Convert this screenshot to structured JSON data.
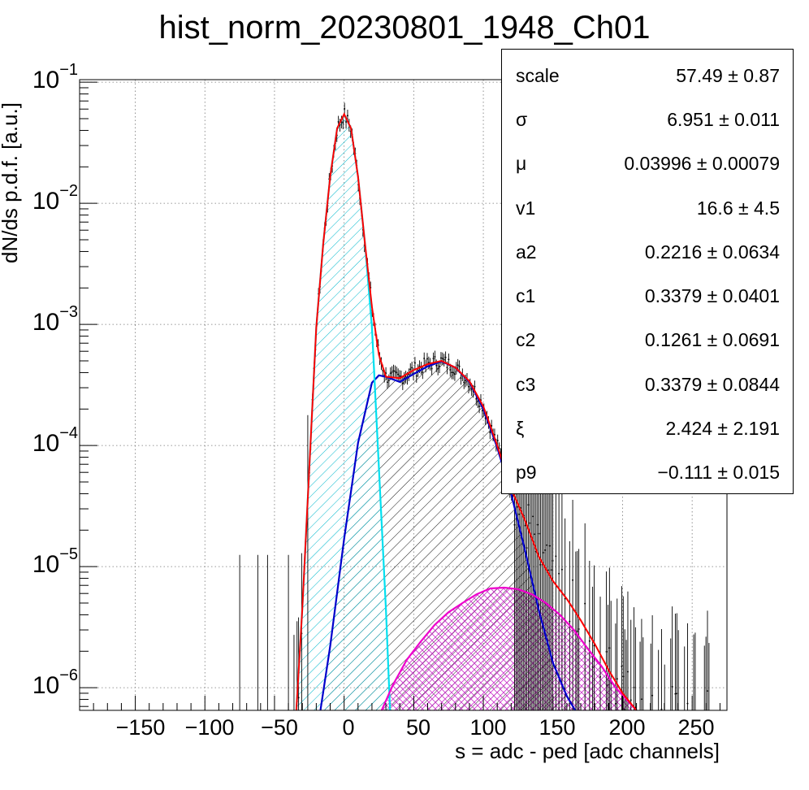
{
  "title": "hist_norm_20230801_1948_Ch01",
  "xlabel": "s = adc - ped [adc channels]",
  "ylabel": "dN/ds p.d.f. [a.u.]",
  "x_ticks": [
    "−150",
    "−100",
    "−50",
    "0",
    "50",
    "100",
    "150",
    "200",
    "250"
  ],
  "y_ticks": [
    {
      "base": "10",
      "exp": "−1"
    },
    {
      "base": "10",
      "exp": "−2"
    },
    {
      "base": "10",
      "exp": "−3"
    },
    {
      "base": "10",
      "exp": "−4"
    },
    {
      "base": "10",
      "exp": "−5"
    },
    {
      "base": "10",
      "exp": "−6"
    }
  ],
  "stats": [
    {
      "name": "scale",
      "value": "57.49 ± 0.87"
    },
    {
      "name": "σ",
      "value": "6.951 ± 0.011"
    },
    {
      "name": "μ",
      "value": "0.03996 ± 0.00079"
    },
    {
      "name": "v1",
      "value": "16.6 ± 4.5"
    },
    {
      "name": "a2",
      "value": "0.2216 ± 0.0634"
    },
    {
      "name": "c1",
      "value": "0.3379 ± 0.0401"
    },
    {
      "name": "c2",
      "value": "0.1261 ± 0.0691"
    },
    {
      "name": "c3",
      "value": "0.3379 ± 0.0844"
    },
    {
      "name": "ξ",
      "value": "2.424 ± 2.191"
    },
    {
      "name": "p9",
      "value": "−0.111 ± 0.015"
    }
  ],
  "chart_data": {
    "type": "line",
    "y_scale": "log",
    "xlim": [
      -190,
      275
    ],
    "ylim": [
      6.5e-07,
      0.105
    ],
    "grid": true,
    "series": [
      {
        "color": "#ff0000",
        "fill": "none",
        "x": [
          -35,
          -30,
          -25,
          -20,
          -15,
          -10,
          -5,
          0,
          5,
          10,
          15,
          20,
          25,
          30,
          40,
          50,
          60,
          70,
          80,
          90,
          100,
          110,
          120,
          130,
          140,
          150,
          160,
          170,
          180,
          190,
          200,
          210
        ],
        "y": [
          4.8e-07,
          4.5e-06,
          6.5e-05,
          0.00095,
          0.0046,
          0.0166,
          0.0416,
          0.0545,
          0.0416,
          0.0166,
          0.0046,
          0.0014,
          0.00056,
          0.00037,
          0.00036,
          0.00042,
          0.00047,
          0.0005,
          0.00044,
          0.00034,
          0.00021,
          0.0001,
          4.4e-05,
          2.4e-05,
          1.2e-05,
          7.6e-06,
          5.4e-06,
          3.6e-06,
          2.3e-06,
          1.4e-06,
          9e-07,
          6.5e-07
        ]
      },
      {
        "color": "#00e0f0",
        "fill": "#00c8dc",
        "x": [
          -35,
          -30,
          -25,
          -20,
          -15,
          -10,
          -5,
          0,
          5,
          10,
          15,
          20,
          25,
          30,
          33
        ],
        "y": [
          4.8e-07,
          4.5e-06,
          6.5e-05,
          0.00095,
          0.0046,
          0.0166,
          0.0416,
          0.054,
          0.0416,
          0.0166,
          0.0046,
          0.00095,
          6.5e-05,
          4.5e-06,
          6.5e-07
        ]
      },
      {
        "color": "#0000cc",
        "fill": "#000000",
        "x": [
          -17,
          -10,
          0,
          10,
          20,
          25,
          30,
          40,
          50,
          60,
          70,
          80,
          90,
          100,
          110,
          120,
          130,
          140,
          150,
          160,
          166
        ],
        "y": [
          6.5e-07,
          2.2e-06,
          1.7e-05,
          0.000105,
          0.00033,
          0.00038,
          0.00037,
          0.000335,
          0.00039,
          0.00045,
          0.000495,
          0.00044,
          0.000335,
          0.0002,
          9.6e-05,
          4e-05,
          1.35e-05,
          4.3e-06,
          1.6e-06,
          8.5e-07,
          6.5e-07
        ]
      },
      {
        "color": "#ee00cc",
        "fill": "#cc33cc",
        "x": [
          27,
          35,
          45,
          55,
          65,
          75,
          85,
          95,
          105,
          115,
          125,
          135,
          145,
          155,
          165,
          175,
          185,
          195,
          205,
          210
        ],
        "y": [
          6.5e-07,
          1.05e-06,
          1.7e-06,
          2.4e-06,
          3.3e-06,
          4.2e-06,
          5e-06,
          5.9e-06,
          6.6e-06,
          6.7e-06,
          6.5e-06,
          5.9e-06,
          5e-06,
          4e-06,
          3e-06,
          2.1e-06,
          1.5e-06,
          1e-06,
          7.5e-07,
          6.5e-07
        ]
      }
    ]
  }
}
